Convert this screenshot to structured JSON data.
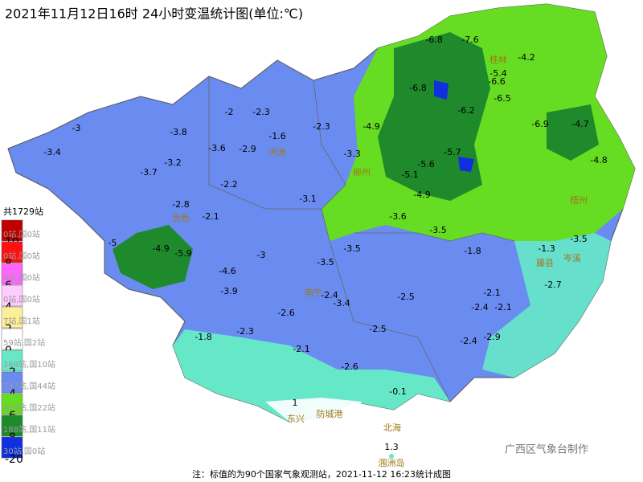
{
  "title": "2021年11月12日16时 24小时变温统计图(单位:℃)",
  "legend": {
    "total": "共1729站",
    "items": [
      {
        "color": "#c00000",
        "count": "0站,国0站",
        "bound": "10"
      },
      {
        "color": "#ff1010",
        "count": "0站,国0站",
        "bound": "8"
      },
      {
        "color": "#ff66ff",
        "count": "0站,国0站",
        "bound": "6"
      },
      {
        "color": "#ffccff",
        "count": "0站,国0站",
        "bound": "4"
      },
      {
        "color": "#ffee99",
        "count": "7站,国1站",
        "bound": "2"
      },
      {
        "color": "#ffffff",
        "count": "59站,国2站",
        "bound": "0"
      },
      {
        "color": "#66e8c8",
        "count": "269站,国10站",
        "bound": "-2"
      },
      {
        "color": "#6a8cf0",
        "count": "747站,国44站",
        "bound": "-4"
      },
      {
        "color": "#66dd22",
        "count": "429站,国22站",
        "bound": "-6"
      },
      {
        "color": "#1f8a2c",
        "count": "188站,国11站",
        "bound": "-8"
      },
      {
        "color": "#1030e0",
        "count": "30站,国0站",
        "bound": "-20"
      }
    ]
  },
  "stations": [
    -3.4,
    -3,
    -3.7,
    -3.2,
    -3.8,
    -2,
    -2.3,
    -3.6,
    -2.9,
    -1.6,
    -2.3,
    -4.9,
    -3.3,
    -2.8,
    -2.1,
    -2.2,
    -3.1,
    -5,
    -4.9,
    -5.9,
    -4.6,
    -3.9,
    -3,
    -3.5,
    -3.5,
    -3.6,
    -3.5,
    -4.9,
    -5.1,
    -5.6,
    -5.7,
    -6.2,
    -6.8,
    -6.8,
    -7.6,
    -5.4,
    -4.2,
    -6.6,
    -6.5,
    -6.9,
    -4.7,
    -4.8,
    -1.3,
    -3.5,
    -1.8,
    -2.7,
    -2.1,
    -2.4,
    -2.1,
    -2.4,
    -2.9,
    -2.6,
    -2.4,
    -3.4,
    -2.5,
    -2.5,
    -1.8,
    -2.3,
    -2.1,
    -2.6,
    -0.1,
    1,
    1.3
  ],
  "places": [
    "东兴",
    "北海",
    "涠洲岛",
    "防城港",
    "藤县",
    "岑溪",
    "南宁",
    "河池",
    "桂林",
    "百色",
    "柳州",
    "梧州"
  ],
  "credit": "广西区气象台制作",
  "footer": "注：标值的为90个国家气象观测站，2021-11-12 16:23统计成图"
}
